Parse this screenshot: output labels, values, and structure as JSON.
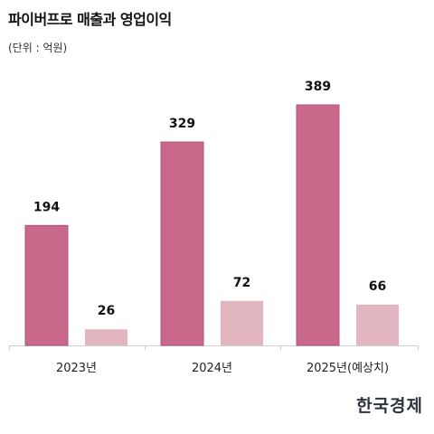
{
  "title": "파이버프로 매출과 영업이익",
  "unit_note": "(단위 : 억원)",
  "logo": "한국경제",
  "colors": {
    "revenue": "#c8688a",
    "revenue_stroke": "#b8507a",
    "operating_profit": "#e2b6c1",
    "axis": "#cfcfcf"
  },
  "chart_data": {
    "type": "bar",
    "title": "파이버프로 매출과 영업이익",
    "unit": "(단위 : 억원)",
    "categories": [
      "2023년",
      "2024년",
      "2025년(예상치)"
    ],
    "series": [
      {
        "values": [
          194,
          329,
          389
        ]
      },
      {
        "values": [
          26,
          72,
          66
        ]
      }
    ],
    "ylim": [
      0,
      420
    ],
    "grid": false,
    "legend": "none"
  }
}
